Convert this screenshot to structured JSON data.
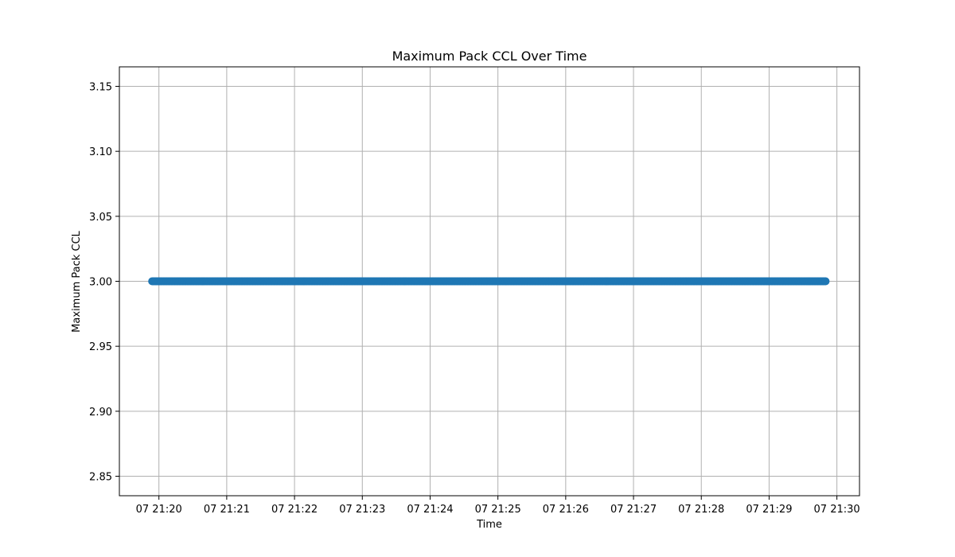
{
  "chart_data": {
    "type": "scatter",
    "title": "Maximum Pack CCL Over Time",
    "xlabel": "Time",
    "ylabel": "Maximum Pack CCL",
    "x_start": "07 21:19:54",
    "x_end": "07 21:29:50",
    "y_value": 3.0,
    "xlim": [
      "07 21:19:25",
      "07 21:30:20"
    ],
    "ylim": [
      2.835,
      3.165
    ],
    "x_ticks": [
      "07 21:20",
      "07 21:21",
      "07 21:22",
      "07 21:23",
      "07 21:24",
      "07 21:25",
      "07 21:26",
      "07 21:27",
      "07 21:28",
      "07 21:29",
      "07 21:30"
    ],
    "y_ticks": [
      "2.85",
      "2.90",
      "2.95",
      "3.00",
      "3.05",
      "3.10",
      "3.15"
    ],
    "grid": true,
    "series_color": "#1f77b4"
  }
}
